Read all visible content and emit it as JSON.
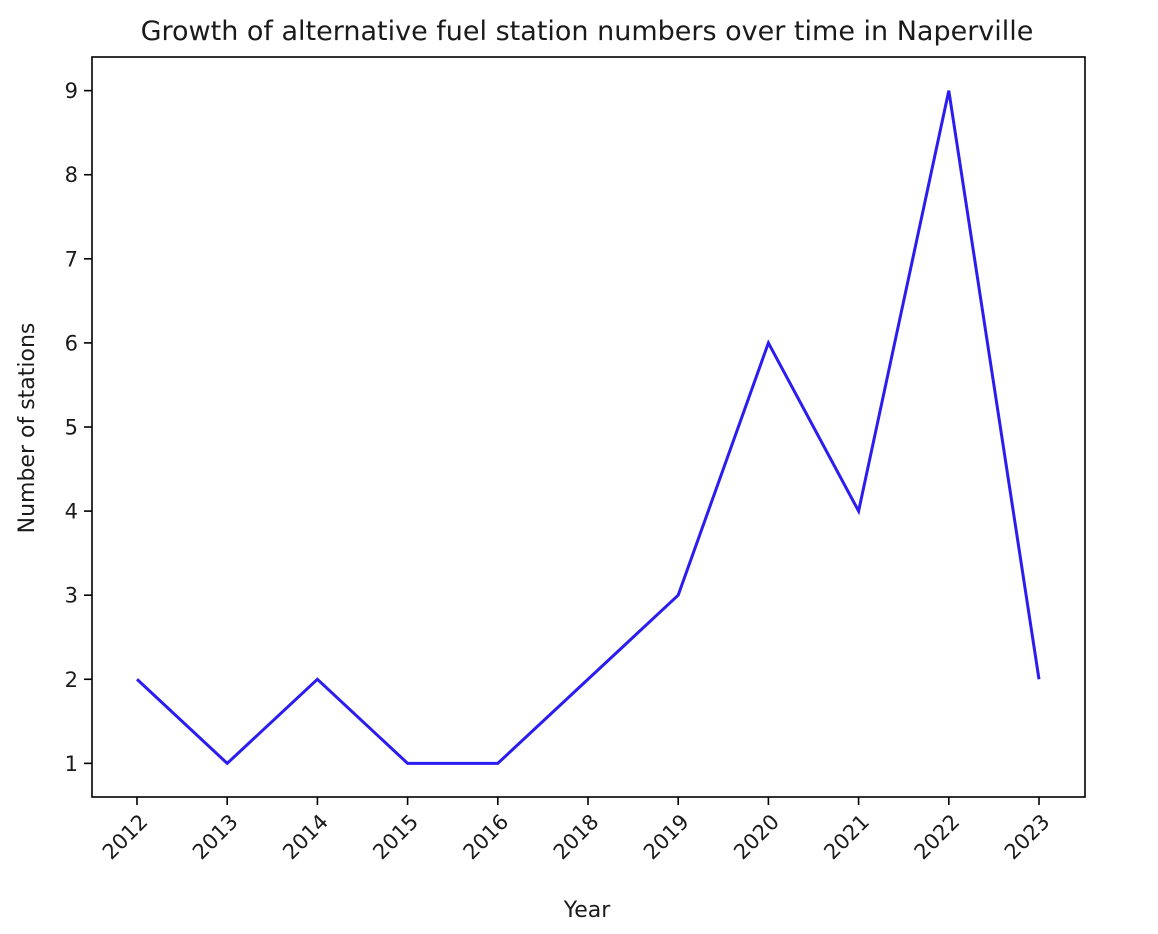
{
  "chart_data": {
    "type": "line",
    "title": "Growth of alternative fuel station numbers over time in Naperville",
    "xlabel": "Year",
    "ylabel": "Number of stations",
    "categories": [
      "2012",
      "2013",
      "2014",
      "2015",
      "2016",
      "2018",
      "2019",
      "2020",
      "2021",
      "2022",
      "2023"
    ],
    "series": [
      {
        "values": [
          2,
          1,
          2,
          1,
          1,
          2,
          3,
          6,
          4,
          9,
          2
        ]
      }
    ],
    "yticks": [
      1,
      2,
      3,
      4,
      5,
      6,
      7,
      8,
      9
    ],
    "ylim": [
      0.6,
      9.4
    ],
    "grid": false,
    "line_color": "#2b1cf0"
  }
}
